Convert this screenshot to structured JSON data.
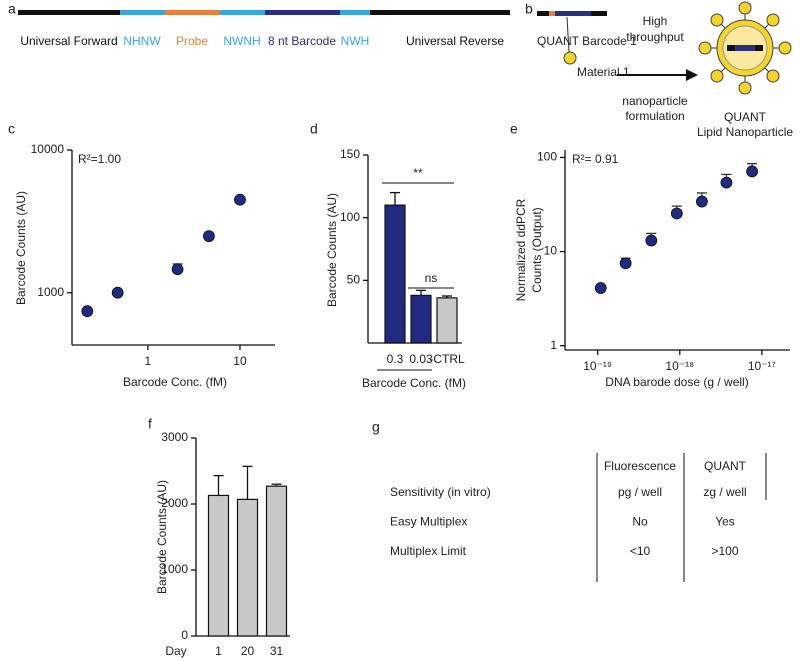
{
  "panel_labels": [
    "a",
    "b",
    "c",
    "d",
    "e",
    "f",
    "g"
  ],
  "construct": {
    "segments": [
      {
        "label": "Universal Forward",
        "color": "#111111"
      },
      {
        "label": "NHNW",
        "color": "#3aa6dc"
      },
      {
        "label": "Probe",
        "color": "#e8813a"
      },
      {
        "label": "NWNH",
        "color": "#3aa6dc"
      },
      {
        "label": "8 nt Barcode",
        "color": "#2b2f7f"
      },
      {
        "label": "NWH",
        "color": "#3aa6dc"
      },
      {
        "label": "Universal Reverse",
        "color": "#111111"
      }
    ]
  },
  "formulation": {
    "barcode_label": "QUANT Barcode 1",
    "material_label": "Material 1",
    "arrow_top": [
      "High",
      "throughput"
    ],
    "arrow_bottom": [
      "nanoparticle",
      "formulation"
    ],
    "product": [
      "QUANT",
      "Lipid Nanoparticle"
    ]
  },
  "chart_data": [
    {
      "type": "scatter",
      "annotation": "R²=1.00",
      "xlabel": "Barcode Conc. (fM)",
      "ylabel": "Barcode Counts  (AU)",
      "x": [
        0.22,
        0.47,
        2.1,
        4.6,
        10
      ],
      "values": [
        742,
        1000,
        1460,
        2490,
        4480
      ],
      "errors": [
        null,
        null,
        130,
        null,
        null
      ],
      "color": "#1f2a80",
      "xscale": "log",
      "yscale": "log",
      "xlim": [
        0.15,
        24
      ],
      "ylim": [
        430,
        10000
      ],
      "xticks": [
        1,
        10
      ],
      "yticks": [
        1000,
        10000
      ]
    },
    {
      "type": "bar",
      "xlabel": "Barcode Conc. (fM)",
      "ylabel": "Barcode Counts  (AU)",
      "categories": [
        "0.3",
        "0.03",
        "-CTRL"
      ],
      "values": [
        110,
        38,
        36
      ],
      "errors": [
        10,
        4,
        1.5
      ],
      "colors": [
        "#1f2a80",
        "#1f2a80",
        "#c8c8c8"
      ],
      "ylim": [
        0,
        150
      ],
      "yticks": [
        50,
        100,
        150
      ],
      "significance": [
        "**",
        "ns"
      ]
    },
    {
      "type": "scatter",
      "annotation": "R²= 0.91",
      "xlabel": "DNA barode dose (g / well)",
      "ylabel": [
        "Normalized ddPCR",
        "Counts (Output)"
      ],
      "x": [
        1.09e-19,
        2.19e-19,
        4.5e-19,
        9.2e-19,
        1.86e-18,
        3.7e-18,
        7.6e-18
      ],
      "values": [
        4.1,
        7.5,
        13.1,
        25.4,
        34,
        54,
        71
      ],
      "errors": [
        null,
        1,
        2.5,
        5,
        8,
        12,
        15
      ],
      "color": "#1f2a80",
      "xscale": "log",
      "yscale": "log",
      "xlim": [
        4e-20,
        2.2e-17
      ],
      "ylim": [
        0.9,
        120
      ],
      "xticks": [
        {
          "value": 1e-19,
          "label": "10⁻¹⁹"
        },
        {
          "value": 1e-18,
          "label": "10⁻¹⁸"
        },
        {
          "value": 1e-17,
          "label": "10⁻¹⁷"
        }
      ],
      "yticks": [
        1,
        10,
        100
      ]
    },
    {
      "type": "bar",
      "xlabel": "Day",
      "ylabel": "Barcode Counts (AU)",
      "categories": [
        "1",
        "20",
        "31"
      ],
      "values": [
        2130,
        2070,
        2270
      ],
      "errors": [
        300,
        500,
        30
      ],
      "colors": [
        "#c8c8c8",
        "#c8c8c8",
        "#c8c8c8"
      ],
      "ylim": [
        0,
        3000
      ],
      "yticks": [
        0,
        1000,
        2000,
        3000
      ]
    }
  ],
  "table": {
    "columns": [
      "Fluorescence",
      "QUANT"
    ],
    "rows": [
      [
        "Sensitivity (in vitro)",
        "pg / well",
        "zg / well"
      ],
      [
        "Easy Multiplex",
        "No",
        "Yes"
      ],
      [
        "Multiplex Limit",
        "<10",
        ">100"
      ]
    ]
  }
}
